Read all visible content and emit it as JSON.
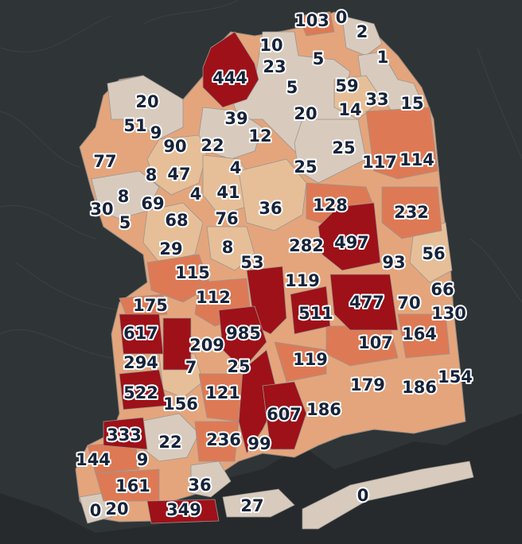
{
  "legend_colors": {
    "lightest": "#d8cbbd",
    "light": "#e3b187",
    "medium_light": "#e8a070",
    "medium": "#e07f58",
    "dark": "#9e1118",
    "water": "#262a2c",
    "land_bg": "#2f3436"
  },
  "regions": [
    {
      "label": "103",
      "value": 103,
      "level": "medium"
    },
    {
      "label": "0",
      "value": 0,
      "level": "lightest"
    },
    {
      "label": "2",
      "value": 2,
      "level": "lightest"
    },
    {
      "label": "1",
      "value": 1,
      "level": "lightest"
    },
    {
      "label": "10",
      "value": 10,
      "level": "lightest"
    },
    {
      "label": "444",
      "value": 444,
      "level": "dark"
    },
    {
      "label": "23",
      "value": 23,
      "level": "lightest"
    },
    {
      "label": "5",
      "value": 5,
      "level": "lightest"
    },
    {
      "label": "5",
      "value": 5,
      "level": "lightest"
    },
    {
      "label": "59",
      "value": 59,
      "level": "light"
    },
    {
      "label": "33",
      "value": 33,
      "level": "light"
    },
    {
      "label": "15",
      "value": 15,
      "level": "lightest"
    },
    {
      "label": "14",
      "value": 14,
      "level": "lightest"
    },
    {
      "label": "20",
      "value": 20,
      "level": "lightest"
    },
    {
      "label": "39",
      "value": 39,
      "level": "light"
    },
    {
      "label": "20",
      "value": 20,
      "level": "lightest"
    },
    {
      "label": "51",
      "value": 51,
      "level": "lightest"
    },
    {
      "label": "9",
      "value": 9,
      "level": "lightest"
    },
    {
      "label": "90",
      "value": 90,
      "level": "medium_light"
    },
    {
      "label": "22",
      "value": 22,
      "level": "lightest"
    },
    {
      "label": "12",
      "value": 12,
      "level": "lightest"
    },
    {
      "label": "25",
      "value": 25,
      "level": "lightest"
    },
    {
      "label": "117",
      "value": 117,
      "level": "medium"
    },
    {
      "label": "114",
      "value": 114,
      "level": "medium"
    },
    {
      "label": "77",
      "value": 77,
      "level": "medium_light"
    },
    {
      "label": "8",
      "value": 8,
      "level": "lightest"
    },
    {
      "label": "47",
      "value": 47,
      "level": "light"
    },
    {
      "label": "4",
      "value": 4,
      "level": "lightest"
    },
    {
      "label": "25",
      "value": 25,
      "level": "lightest"
    },
    {
      "label": "8",
      "value": 8,
      "level": "lightest"
    },
    {
      "label": "4",
      "value": 4,
      "level": "lightest"
    },
    {
      "label": "41",
      "value": 41,
      "level": "light"
    },
    {
      "label": "30",
      "value": 30,
      "level": "lightest"
    },
    {
      "label": "69",
      "value": 69,
      "level": "light"
    },
    {
      "label": "36",
      "value": 36,
      "level": "light"
    },
    {
      "label": "128",
      "value": 128,
      "level": "medium"
    },
    {
      "label": "232",
      "value": 232,
      "level": "medium"
    },
    {
      "label": "5",
      "value": 5,
      "level": "lightest"
    },
    {
      "label": "68",
      "value": 68,
      "level": "light"
    },
    {
      "label": "76",
      "value": 76,
      "level": "light"
    },
    {
      "label": "497",
      "value": 497,
      "level": "dark"
    },
    {
      "label": "29",
      "value": 29,
      "level": "light"
    },
    {
      "label": "8",
      "value": 8,
      "level": "lightest"
    },
    {
      "label": "282",
      "value": 282,
      "level": "medium"
    },
    {
      "label": "56",
      "value": 56,
      "level": "light"
    },
    {
      "label": "53",
      "value": 53,
      "level": "light"
    },
    {
      "label": "93",
      "value": 93,
      "level": "medium_light"
    },
    {
      "label": "115",
      "value": 115,
      "level": "medium"
    },
    {
      "label": "119",
      "value": 119,
      "level": "medium"
    },
    {
      "label": "66",
      "value": 66,
      "level": "light"
    },
    {
      "label": "112",
      "value": 112,
      "level": "medium"
    },
    {
      "label": "175",
      "value": 175,
      "level": "medium"
    },
    {
      "label": "477",
      "value": 477,
      "level": "dark"
    },
    {
      "label": "70",
      "value": 70,
      "level": "medium_light"
    },
    {
      "label": "511",
      "value": 511,
      "level": "dark"
    },
    {
      "label": "130",
      "value": 130,
      "level": "medium"
    },
    {
      "label": "617",
      "value": 617,
      "level": "dark"
    },
    {
      "label": "985",
      "value": 985,
      "level": "dark"
    },
    {
      "label": "164",
      "value": 164,
      "level": "medium"
    },
    {
      "label": "209",
      "value": 209,
      "level": "medium"
    },
    {
      "label": "107",
      "value": 107,
      "level": "medium"
    },
    {
      "label": "294",
      "value": 294,
      "level": "medium"
    },
    {
      "label": "7",
      "value": 7,
      "level": "lightest"
    },
    {
      "label": "119",
      "value": 119,
      "level": "medium"
    },
    {
      "label": "25",
      "value": 25,
      "level": "lightest"
    },
    {
      "label": "154",
      "value": 154,
      "level": "medium"
    },
    {
      "label": "179",
      "value": 179,
      "level": "medium"
    },
    {
      "label": "186",
      "value": 186,
      "level": "medium"
    },
    {
      "label": "522",
      "value": 522,
      "level": "dark"
    },
    {
      "label": "121",
      "value": 121,
      "level": "medium"
    },
    {
      "label": "156",
      "value": 156,
      "level": "medium"
    },
    {
      "label": "607",
      "value": 607,
      "level": "dark"
    },
    {
      "label": "186",
      "value": 186,
      "level": "medium"
    },
    {
      "label": "333",
      "value": 333,
      "level": "dark"
    },
    {
      "label": "22",
      "value": 22,
      "level": "lightest"
    },
    {
      "label": "236",
      "value": 236,
      "level": "medium"
    },
    {
      "label": "99",
      "value": 99,
      "level": "medium"
    },
    {
      "label": "144",
      "value": 144,
      "level": "medium"
    },
    {
      "label": "9",
      "value": 9,
      "level": "lightest"
    },
    {
      "label": "161",
      "value": 161,
      "level": "medium"
    },
    {
      "label": "36",
      "value": 36,
      "level": "lightest"
    },
    {
      "label": "0",
      "value": 0,
      "level": "lightest"
    },
    {
      "label": "20",
      "value": 20,
      "level": "lightest"
    },
    {
      "label": "349",
      "value": 349,
      "level": "dark"
    },
    {
      "label": "27",
      "value": 27,
      "level": "lightest"
    },
    {
      "label": "0",
      "value": 0,
      "level": "lightest"
    }
  ]
}
